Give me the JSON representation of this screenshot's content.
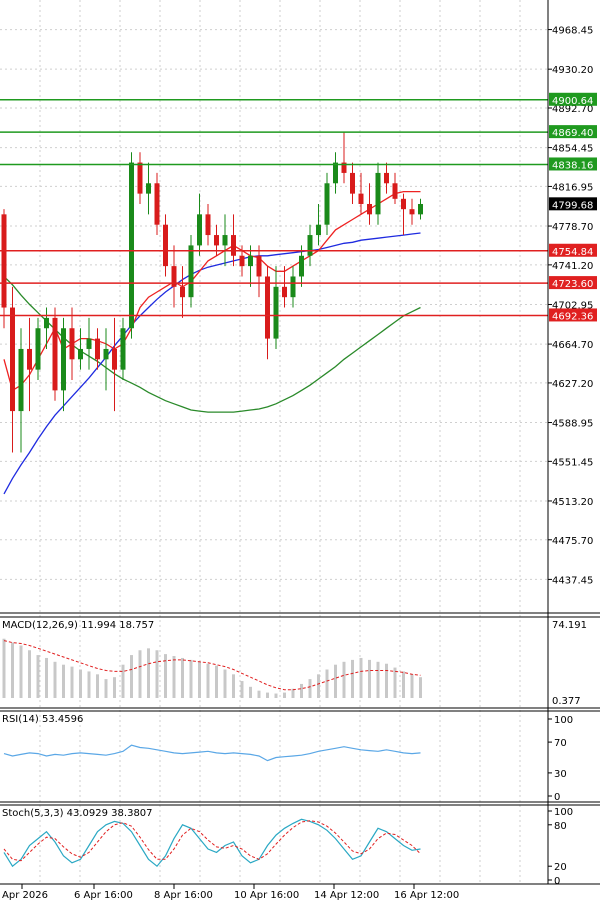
{
  "chart_data": [
    {
      "type": "candlestick",
      "price_ticks": [
        "4968.45",
        "4930.20",
        "4892.70",
        "4854.45",
        "4816.95",
        "4778.70",
        "4741.20",
        "4702.95",
        "4664.70",
        "4627.20",
        "4588.95",
        "4551.45",
        "4513.20",
        "4475.70",
        "4437.45"
      ],
      "ylim": [
        4405,
        4997
      ],
      "current_price": "4799.68",
      "levels": [
        {
          "value": 4900.64,
          "label": "4900.64",
          "color": "#1f9a1f"
        },
        {
          "value": 4869.4,
          "label": "4869.40",
          "color": "#1f9a1f"
        },
        {
          "value": 4838.16,
          "label": "4838.16",
          "color": "#1f9a1f"
        },
        {
          "value": 4754.84,
          "label": "4754.84",
          "color": "#e02020"
        },
        {
          "value": 4723.6,
          "label": "4723.60",
          "color": "#e02020"
        },
        {
          "value": 4692.36,
          "label": "4692.36",
          "color": "#e02020"
        }
      ],
      "candles": [
        [
          4790,
          4795,
          4680,
          4700
        ],
        [
          4700,
          4720,
          4560,
          4600
        ],
        [
          4600,
          4680,
          4560,
          4660
        ],
        [
          4660,
          4690,
          4600,
          4640
        ],
        [
          4640,
          4690,
          4630,
          4680
        ],
        [
          4680,
          4700,
          4660,
          4690
        ],
        [
          4690,
          4700,
          4610,
          4620
        ],
        [
          4620,
          4690,
          4600,
          4680
        ],
        [
          4680,
          4700,
          4630,
          4650
        ],
        [
          4650,
          4680,
          4640,
          4660
        ],
        [
          4660,
          4690,
          4640,
          4670
        ],
        [
          4670,
          4680,
          4640,
          4650
        ],
        [
          4650,
          4680,
          4620,
          4660
        ],
        [
          4660,
          4690,
          4600,
          4640
        ],
        [
          4640,
          4690,
          4630,
          4680
        ],
        [
          4680,
          4850,
          4670,
          4840
        ],
        [
          4840,
          4850,
          4800,
          4810
        ],
        [
          4810,
          4840,
          4790,
          4820
        ],
        [
          4820,
          4830,
          4770,
          4780
        ],
        [
          4780,
          4790,
          4730,
          4740
        ],
        [
          4740,
          4760,
          4700,
          4720
        ],
        [
          4720,
          4740,
          4690,
          4710
        ],
        [
          4710,
          4770,
          4700,
          4760
        ],
        [
          4760,
          4810,
          4750,
          4790
        ],
        [
          4790,
          4800,
          4760,
          4770
        ],
        [
          4770,
          4780,
          4750,
          4760
        ],
        [
          4760,
          4790,
          4740,
          4770
        ],
        [
          4770,
          4790,
          4740,
          4750
        ],
        [
          4750,
          4760,
          4730,
          4740
        ],
        [
          4740,
          4760,
          4720,
          4750
        ],
        [
          4750,
          4760,
          4710,
          4730
        ],
        [
          4730,
          4740,
          4650,
          4670
        ],
        [
          4670,
          4740,
          4660,
          4720
        ],
        [
          4720,
          4740,
          4700,
          4710
        ],
        [
          4710,
          4740,
          4700,
          4730
        ],
        [
          4730,
          4760,
          4720,
          4750
        ],
        [
          4750,
          4780,
          4740,
          4770
        ],
        [
          4770,
          4800,
          4760,
          4780
        ],
        [
          4780,
          4830,
          4770,
          4820
        ],
        [
          4820,
          4850,
          4810,
          4840
        ],
        [
          4840,
          4870,
          4820,
          4830
        ],
        [
          4830,
          4840,
          4800,
          4810
        ],
        [
          4810,
          4830,
          4790,
          4800
        ],
        [
          4800,
          4820,
          4780,
          4790
        ],
        [
          4790,
          4840,
          4780,
          4830
        ],
        [
          4830,
          4840,
          4810,
          4820
        ],
        [
          4820,
          4830,
          4800,
          4805
        ],
        [
          4805,
          4810,
          4770,
          4795
        ],
        [
          4795,
          4805,
          4780,
          4790
        ],
        [
          4790,
          4805,
          4785,
          4800
        ]
      ],
      "ma_fast": {
        "color": "#ee2222",
        "values": [
          4650,
          4620,
          4625,
          4635,
          4650,
          4665,
          4680,
          4660,
          4665,
          4670,
          4670,
          4668,
          4665,
          4660,
          4665,
          4680,
          4700,
          4710,
          4715,
          4720,
          4725,
          4720,
          4725,
          4735,
          4745,
          4750,
          4755,
          4760,
          4755,
          4750,
          4748,
          4740,
          4735,
          4735,
          4740,
          4745,
          4750,
          4755,
          4765,
          4775,
          4780,
          4785,
          4790,
          4795,
          4800,
          4805,
          4810,
          4812,
          4812,
          4812
        ]
      },
      "ma_mid": {
        "color": "#1f2be0",
        "values": [
          4520,
          4535,
          4548,
          4560,
          4573,
          4585,
          4596,
          4605,
          4614,
          4623,
          4632,
          4642,
          4652,
          4663,
          4673,
          4683,
          4692,
          4700,
          4708,
          4715,
          4721,
          4727,
          4732,
          4736,
          4739,
          4741,
          4743,
          4745,
          4747,
          4749,
          4750,
          4750,
          4751,
          4752,
          4753,
          4754,
          4755,
          4756,
          4758,
          4760,
          4762,
          4763,
          4765,
          4766,
          4767,
          4768,
          4769,
          4770,
          4771,
          4772
        ]
      },
      "ma_slow": {
        "color": "#2a8a2a",
        "values": [
          4730,
          4722,
          4712,
          4703,
          4695,
          4687,
          4679,
          4671,
          4664,
          4658,
          4653,
          4648,
          4642,
          4636,
          4631,
          4627,
          4623,
          4618,
          4614,
          4610,
          4607,
          4604,
          4601,
          4600,
          4599,
          4599,
          4599,
          4599,
          4600,
          4601,
          4602,
          4604,
          4607,
          4611,
          4615,
          4620,
          4625,
          4631,
          4637,
          4643,
          4650,
          4656,
          4662,
          4668,
          4674,
          4680,
          4686,
          4692,
          4696,
          4700
        ]
      }
    },
    {
      "type": "bar",
      "title": "MACD(12,26,9) 11.994 18.757",
      "ticks": [
        "74.191",
        "0.377"
      ],
      "ylim": [
        0.377,
        74.191
      ],
      "histogram": [
        62,
        58,
        55,
        50,
        45,
        42,
        38,
        35,
        33,
        30,
        28,
        25,
        20,
        22,
        35,
        45,
        50,
        52,
        50,
        46,
        44,
        42,
        40,
        38,
        36,
        34,
        30,
        25,
        18,
        12,
        8,
        6,
        5,
        6,
        10,
        15,
        20,
        25,
        30,
        35,
        38,
        40,
        42,
        40,
        38,
        36,
        32,
        28,
        25,
        22
      ],
      "signal": {
        "color": "#e02020",
        "values": [
          60,
          58,
          57,
          55,
          52,
          49,
          46,
          43,
          40,
          37,
          34,
          31,
          29,
          28,
          28,
          30,
          33,
          36,
          38,
          39,
          40,
          40,
          39,
          38,
          37,
          35,
          33,
          30,
          26,
          22,
          18,
          14,
          11,
          9,
          9,
          10,
          12,
          15,
          18,
          21,
          24,
          26,
          28,
          29,
          29,
          29,
          28,
          27,
          25,
          24
        ]
      }
    },
    {
      "type": "line",
      "title": "RSI(14) 53.4596",
      "ticks": [
        "100",
        "70",
        "30",
        "0"
      ],
      "ylim": [
        0,
        100
      ],
      "values": [
        55,
        52,
        54,
        56,
        55,
        52,
        54,
        53,
        55,
        56,
        55,
        54,
        53,
        55,
        58,
        66,
        63,
        62,
        60,
        58,
        56,
        55,
        56,
        57,
        58,
        56,
        55,
        56,
        55,
        54,
        52,
        46,
        50,
        51,
        52,
        53,
        55,
        58,
        60,
        62,
        64,
        62,
        60,
        59,
        58,
        60,
        58,
        56,
        55,
        56
      ]
    },
    {
      "type": "line",
      "title": "Stoch(5,3,3) 43.0929 38.3807",
      "ticks": [
        "100",
        "80",
        "20",
        "0"
      ],
      "ylim": [
        0,
        100
      ],
      "k": {
        "color": "#2aa8c4",
        "values": [
          40,
          20,
          30,
          50,
          60,
          70,
          55,
          35,
          25,
          30,
          50,
          70,
          80,
          85,
          82,
          70,
          50,
          30,
          20,
          35,
          60,
          80,
          75,
          60,
          45,
          40,
          50,
          55,
          35,
          25,
          30,
          50,
          65,
          75,
          82,
          88,
          85,
          80,
          72,
          60,
          45,
          30,
          35,
          55,
          75,
          70,
          60,
          50,
          43,
          45
        ]
      },
      "d": {
        "color": "#e02020",
        "values": [
          45,
          30,
          28,
          40,
          52,
          62,
          60,
          48,
          38,
          33,
          40,
          55,
          70,
          80,
          83,
          78,
          62,
          44,
          30,
          30,
          45,
          65,
          75,
          70,
          58,
          48,
          46,
          50,
          45,
          35,
          30,
          38,
          52,
          65,
          76,
          84,
          86,
          84,
          78,
          68,
          55,
          42,
          38,
          45,
          60,
          68,
          66,
          58,
          50,
          38
        ]
      }
    }
  ],
  "time_axis": {
    "labels": [
      "Apr 2026",
      "6 Apr 16:00",
      "8 Apr 16:00",
      "10 Apr 16:00",
      "14 Apr 12:00",
      "16 Apr 12:00"
    ]
  }
}
